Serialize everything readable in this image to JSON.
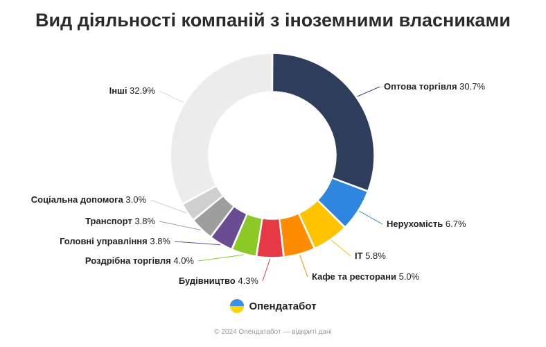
{
  "title": "Вид діяльності компаній з іноземними власниками",
  "chart_data": {
    "type": "pie",
    "variant": "donut",
    "title": "Вид діяльності компаній з іноземними власниками",
    "categories": [
      "Оптова торгівля",
      "Нерухомість",
      "IT",
      "Кафе та ресторани",
      "Будівництво",
      "Роздрібна торгівля",
      "Головні управління",
      "Транспорт",
      "Соціальна допомога",
      "Інші"
    ],
    "values": [
      30.7,
      6.7,
      5.8,
      5.0,
      4.3,
      4.0,
      3.8,
      3.8,
      3.0,
      32.9
    ],
    "value_labels": [
      "30.7%",
      "6.7%",
      "5.8%",
      "5.0%",
      "4.3%",
      "4.0%",
      "3.8%",
      "3.8%",
      "3.0%",
      "32.9%"
    ],
    "colors": [
      "#2e3d5c",
      "#2e86de",
      "#ffc300",
      "#fd8c00",
      "#e63946",
      "#8ac926",
      "#6a4c93",
      "#9e9e9e",
      "#cfcfcf",
      "#ececec"
    ],
    "legend": "none",
    "labels_placement": "outside-with-leader-lines"
  },
  "brand": {
    "name": "Опендатабот",
    "icon": "opendatabot-logo"
  },
  "footer": "© 2024 Опендатабот — відкриті дані"
}
